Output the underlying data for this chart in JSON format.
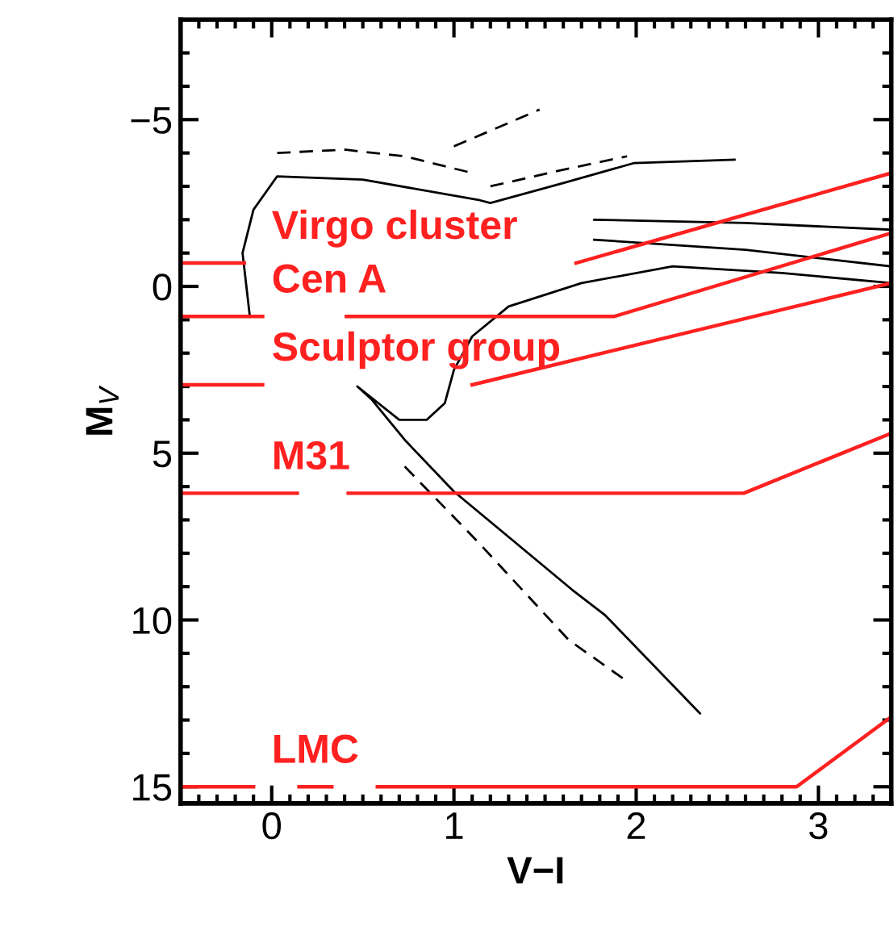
{
  "chart_data": {
    "type": "line",
    "xlabel": "V−I",
    "ylabel": "M$_{V}$",
    "xlim": [
      -0.5,
      3.4
    ],
    "ylim": [
      15.5,
      -8
    ],
    "xticks": [
      0,
      1,
      2,
      3
    ],
    "yticks": [
      {
        "value": -5,
        "label": "−5"
      },
      0,
      5,
      10,
      15
    ],
    "grid": false,
    "legend": false,
    "marker": "none",
    "series": [
      {
        "color": "#000000",
        "line_style": "solid",
        "x": [
          2.35,
          1.83,
          1.65,
          1.0,
          0.73,
          0.55,
          0.47,
          0.7,
          0.85,
          0.95,
          1.0,
          1.1,
          1.3,
          1.7,
          2.2,
          2.8,
          3.4
        ],
        "values": [
          12.8,
          9.86,
          9.1,
          6.15,
          4.6,
          3.4,
          3.0,
          4.0,
          4.0,
          3.5,
          2.5,
          1.5,
          0.6,
          -0.1,
          -0.6,
          -0.4,
          -0.1
        ]
      },
      {
        "color": "#000000",
        "line_style": "dashed",
        "x": [
          0.73,
          1.13,
          1.63,
          1.94
        ],
        "values": [
          5.4,
          7.65,
          10.6,
          11.8
        ]
      },
      {
        "color": "#000000",
        "line_style": "solid",
        "x": [
          -0.12,
          -0.16,
          -0.1,
          0.03,
          0.5,
          1.13,
          1.2,
          1.6,
          1.99,
          2.54
        ],
        "values": [
          0.9,
          -1.0,
          -2.3,
          -3.3,
          -3.2,
          -2.6,
          -2.5,
          -3.1,
          -3.7,
          -3.8
        ]
      },
      {
        "color": "#000000",
        "line_style": "dashed",
        "x": [
          0.03,
          0.4,
          0.73,
          1.1
        ],
        "values": [
          -4.0,
          -4.1,
          -3.9,
          -3.4
        ]
      },
      {
        "color": "#000000",
        "line_style": "dashed",
        "x": [
          1.0,
          1.47
        ],
        "values": [
          -4.2,
          -5.3
        ]
      },
      {
        "color": "#000000",
        "line_style": "dashed",
        "x": [
          1.2,
          1.6,
          1.95
        ],
        "values": [
          -3.0,
          -3.5,
          -3.9
        ]
      },
      {
        "color": "#000000",
        "line_style": "solid",
        "x": [
          1.77,
          2.6,
          3.4
        ],
        "values": [
          -2.0,
          -1.9,
          -1.7
        ]
      },
      {
        "color": "#000000",
        "line_style": "solid",
        "x": [
          1.77,
          2.6,
          3.4
        ],
        "values": [
          -1.4,
          -1.1,
          -0.6
        ]
      },
      {
        "color": "#ff2020",
        "line_style": "solid",
        "x": [
          -0.5,
          -0.15,
          0.5,
          1.67,
          3.4
        ],
        "values": [
          -0.7,
          -0.7,
          null,
          -0.7,
          -3.4
        ]
      },
      {
        "color": "#ff2020",
        "line_style": "solid",
        "x": [
          -0.5,
          -0.05,
          0.2,
          0.41,
          1.88,
          3.4
        ],
        "values": [
          0.9,
          0.9,
          null,
          0.9,
          0.9,
          -1.6
        ]
      },
      {
        "color": "#ff2020",
        "line_style": "solid",
        "x": [
          -0.5,
          -0.05,
          0.5,
          1.1,
          3.4
        ],
        "values": [
          2.95,
          2.95,
          null,
          2.95,
          -0.1
        ]
      },
      {
        "color": "#ff2020",
        "line_style": "solid",
        "x": [
          -0.5,
          0.14,
          0.28,
          0.42,
          2.59,
          3.4
        ],
        "values": [
          6.2,
          6.2,
          null,
          6.2,
          6.2,
          4.4
        ]
      },
      {
        "color": "#ff2020",
        "line_style": "solid",
        "x": [
          -0.5,
          -0.1,
          0.0,
          0.15,
          0.33,
          0.45,
          0.58,
          2.88,
          3.4
        ],
        "values": [
          15,
          15,
          null,
          15,
          15,
          null,
          15,
          15,
          12.9
        ]
      }
    ],
    "annotations": [
      "Virgo cluster",
      "Cen A",
      "Sculptor group",
      "M31",
      "LMC"
    ]
  }
}
